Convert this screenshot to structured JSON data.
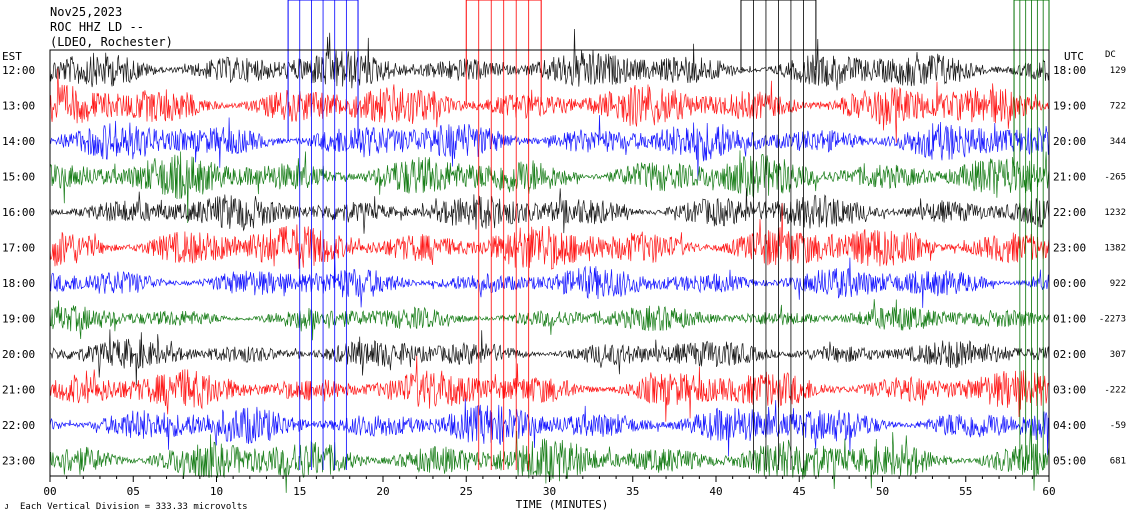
{
  "header": {
    "date": "Nov25,2023",
    "station": "ROC HHZ LD --",
    "network": "(LDEO, Rochester)"
  },
  "axis_labels": {
    "left_zone": "EST",
    "right_zone": "UTC",
    "dc_header": "DC",
    "x_title": "TIME (MINUTES)"
  },
  "footer": {
    "note": "Each Vertical Division =  333.33 microvolts"
  },
  "colors": {
    "cycle": [
      "#000000",
      "#ff0000",
      "#0000ff",
      "#007000"
    ]
  },
  "chart_data": {
    "type": "line",
    "description_kind": "helicorder",
    "xlabel": "TIME (MINUTES)",
    "xlim": [
      0,
      60
    ],
    "x_ticks": [
      "00",
      "05",
      "10",
      "15",
      "20",
      "25",
      "30",
      "35",
      "40",
      "45",
      "50",
      "55",
      "60"
    ],
    "rows_est": [
      "12:00",
      "13:00",
      "14:00",
      "15:00",
      "16:00",
      "17:00",
      "18:00",
      "19:00",
      "20:00",
      "21:00",
      "22:00",
      "23:00"
    ],
    "rows_utc": [
      "18:00",
      "19:00",
      "20:00",
      "21:00",
      "22:00",
      "23:00",
      "00:00",
      "01:00",
      "02:00",
      "03:00",
      "04:00",
      "05:00"
    ],
    "dc_offsets": [
      "129",
      "722",
      "344",
      "-265",
      "1232",
      "1382",
      "922",
      "-2273",
      "307",
      "-222",
      "-59",
      "681"
    ],
    "trace_colors": [
      "#000000",
      "#ff0000",
      "#0000ff",
      "#007000",
      "#000000",
      "#ff0000",
      "#0000ff",
      "#007000",
      "#000000",
      "#ff0000",
      "#0000ff",
      "#007000"
    ],
    "trace_amplitude_level": [
      0.55,
      0.6,
      0.55,
      0.6,
      0.5,
      0.65,
      0.45,
      0.35,
      0.4,
      0.55,
      0.55,
      0.6
    ],
    "clipped_bursts_minutes": [
      {
        "row": 2,
        "from": 14.3,
        "to": 18.5
      },
      {
        "row": 1,
        "from": 25.0,
        "to": 29.5
      },
      {
        "row": 0,
        "from": 41.5,
        "to": 46.0
      },
      {
        "row": 3,
        "from": 57.9,
        "to": 60.0
      }
    ],
    "vertical_division_microvolts": 333.33
  }
}
